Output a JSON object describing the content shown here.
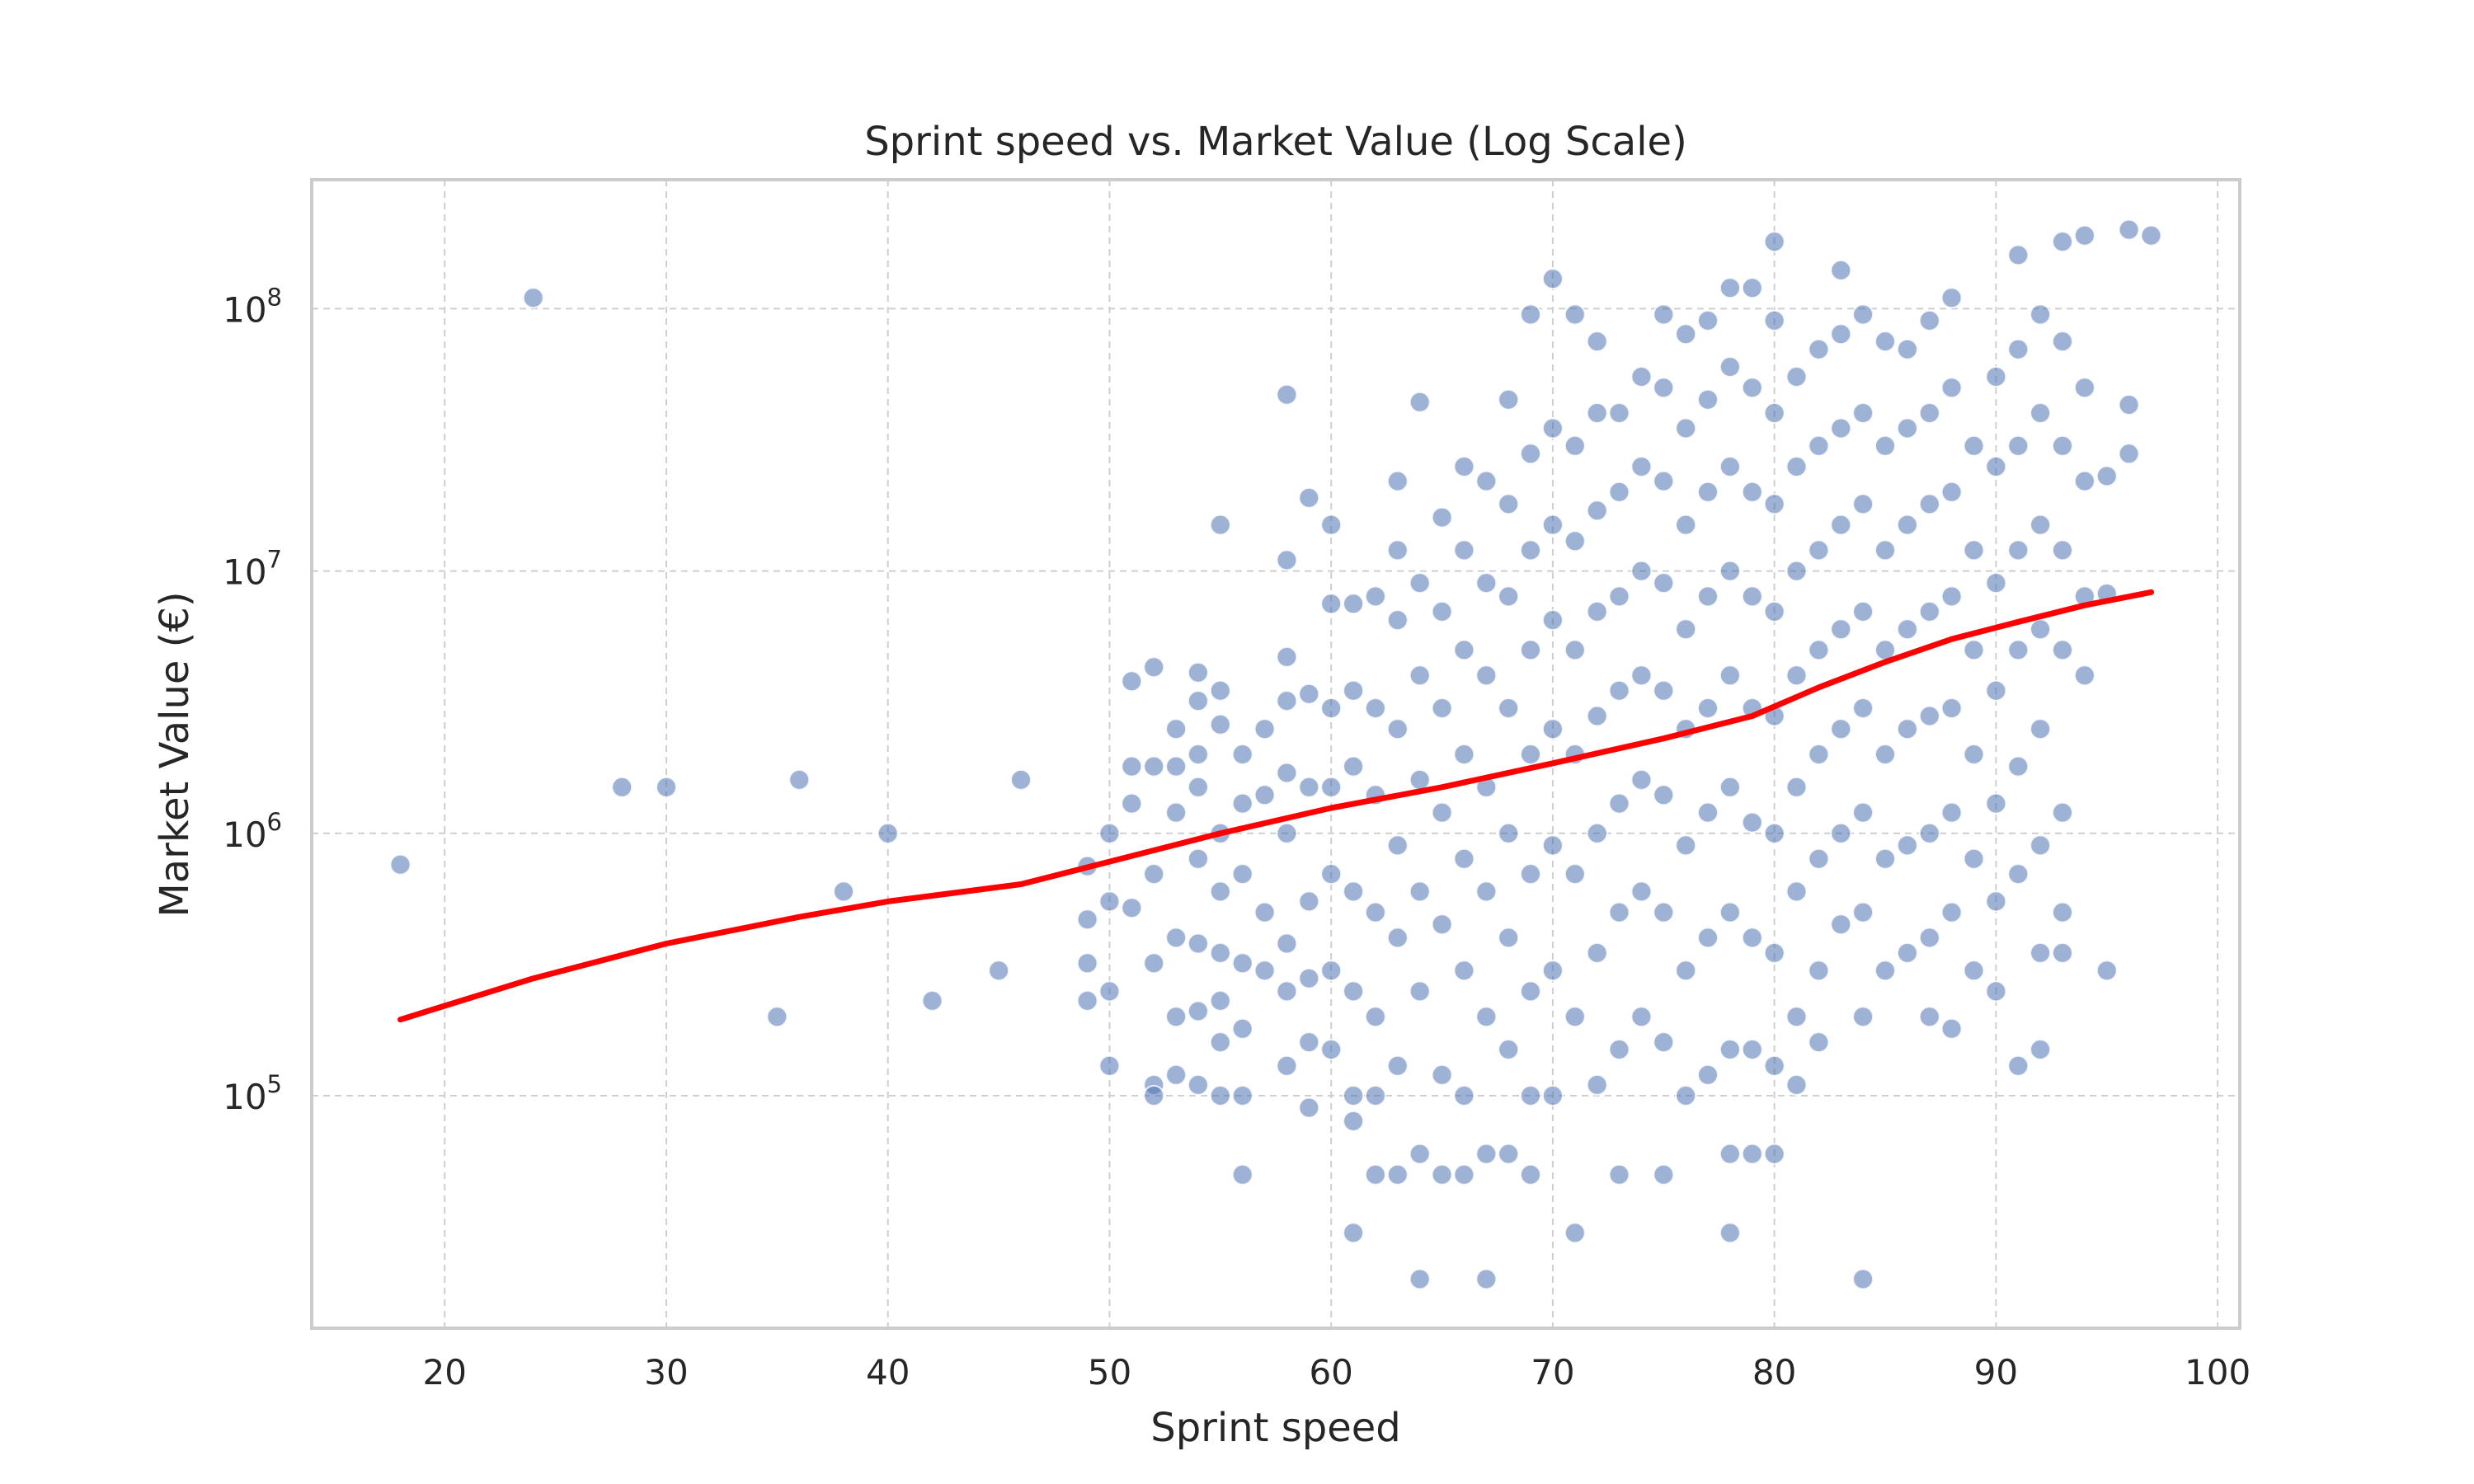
{
  "chart_data": {
    "type": "scatter",
    "title": "Sprint speed vs. Market Value (Log Scale)",
    "xlabel": "Sprint speed",
    "ylabel": "Market Value (€)",
    "xlim": [
      14,
      101
    ],
    "ylim": [
      13000,
      310000000
    ],
    "y_scale": "log",
    "grid": true,
    "x_ticks": [
      "20",
      "30",
      "40",
      "50",
      "60",
      "70",
      "80",
      "90",
      "100"
    ],
    "y_ticks": [
      {
        "base": "10",
        "exp": "5"
      },
      {
        "base": "10",
        "exp": "6"
      },
      {
        "base": "10",
        "exp": "7"
      },
      {
        "base": "10",
        "exp": "8"
      }
    ],
    "point_color": "#4c72b0",
    "trend_color": "#ff0000",
    "points": [
      [
        18,
        760000
      ],
      [
        24,
        110000000
      ],
      [
        28,
        1500000
      ],
      [
        30,
        1500000
      ],
      [
        35,
        200000
      ],
      [
        36,
        1600000
      ],
      [
        38,
        600000
      ],
      [
        40,
        1000000
      ],
      [
        42,
        230000
      ],
      [
        45,
        300000
      ],
      [
        46,
        1600000
      ],
      [
        49,
        750000
      ],
      [
        49,
        470000
      ],
      [
        49,
        320000
      ],
      [
        49,
        230000
      ],
      [
        50,
        1000000
      ],
      [
        50,
        550000
      ],
      [
        50,
        250000
      ],
      [
        50,
        130000
      ],
      [
        51,
        3800000
      ],
      [
        51,
        1800000
      ],
      [
        51,
        1300000
      ],
      [
        51,
        520000
      ],
      [
        52,
        4300000
      ],
      [
        52,
        1800000
      ],
      [
        52,
        700000
      ],
      [
        52,
        320000
      ],
      [
        52,
        110000
      ],
      [
        52,
        100000
      ],
      [
        53,
        2500000
      ],
      [
        53,
        1800000
      ],
      [
        53,
        1200000
      ],
      [
        53,
        400000
      ],
      [
        53,
        200000
      ],
      [
        53,
        120000
      ],
      [
        54,
        4100000
      ],
      [
        54,
        3200000
      ],
      [
        54,
        2000000
      ],
      [
        54,
        1500000
      ],
      [
        54,
        800000
      ],
      [
        54,
        380000
      ],
      [
        54,
        210000
      ],
      [
        54,
        110000
      ],
      [
        55,
        15000000
      ],
      [
        55,
        3500000
      ],
      [
        55,
        2600000
      ],
      [
        55,
        1000000
      ],
      [
        55,
        600000
      ],
      [
        55,
        350000
      ],
      [
        55,
        230000
      ],
      [
        55,
        160000
      ],
      [
        55,
        100000
      ],
      [
        56,
        2000000
      ],
      [
        56,
        1300000
      ],
      [
        56,
        700000
      ],
      [
        56,
        320000
      ],
      [
        56,
        180000
      ],
      [
        56,
        100000
      ],
      [
        56,
        50000
      ],
      [
        57,
        2500000
      ],
      [
        57,
        1400000
      ],
      [
        57,
        500000
      ],
      [
        57,
        300000
      ],
      [
        58,
        47000000
      ],
      [
        58,
        11000000
      ],
      [
        58,
        4700000
      ],
      [
        58,
        3200000
      ],
      [
        58,
        1700000
      ],
      [
        58,
        1000000
      ],
      [
        58,
        380000
      ],
      [
        58,
        250000
      ],
      [
        58,
        130000
      ],
      [
        59,
        19000000
      ],
      [
        59,
        3400000
      ],
      [
        59,
        1500000
      ],
      [
        59,
        550000
      ],
      [
        59,
        280000
      ],
      [
        59,
        160000
      ],
      [
        59,
        90000
      ],
      [
        60,
        15000000
      ],
      [
        60,
        7500000
      ],
      [
        60,
        3000000
      ],
      [
        60,
        1500000
      ],
      [
        60,
        700000
      ],
      [
        60,
        300000
      ],
      [
        60,
        150000
      ],
      [
        61,
        7500000
      ],
      [
        61,
        3500000
      ],
      [
        61,
        1800000
      ],
      [
        61,
        600000
      ],
      [
        61,
        250000
      ],
      [
        61,
        100000
      ],
      [
        61,
        80000
      ],
      [
        61,
        30000
      ],
      [
        62,
        8000000
      ],
      [
        62,
        3000000
      ],
      [
        62,
        1400000
      ],
      [
        62,
        500000
      ],
      [
        62,
        200000
      ],
      [
        62,
        100000
      ],
      [
        62,
        50000
      ],
      [
        63,
        22000000
      ],
      [
        63,
        12000000
      ],
      [
        63,
        6500000
      ],
      [
        63,
        2500000
      ],
      [
        63,
        900000
      ],
      [
        63,
        400000
      ],
      [
        63,
        130000
      ],
      [
        63,
        50000
      ],
      [
        64,
        44000000
      ],
      [
        64,
        9000000
      ],
      [
        64,
        4000000
      ],
      [
        64,
        1600000
      ],
      [
        64,
        600000
      ],
      [
        64,
        250000
      ],
      [
        64,
        60000
      ],
      [
        64,
        20000
      ],
      [
        65,
        16000000
      ],
      [
        65,
        7000000
      ],
      [
        65,
        3000000
      ],
      [
        65,
        1200000
      ],
      [
        65,
        450000
      ],
      [
        65,
        120000
      ],
      [
        65,
        50000
      ],
      [
        66,
        25000000
      ],
      [
        66,
        12000000
      ],
      [
        66,
        5000000
      ],
      [
        66,
        2000000
      ],
      [
        66,
        800000
      ],
      [
        66,
        300000
      ],
      [
        66,
        100000
      ],
      [
        66,
        50000
      ],
      [
        67,
        22000000
      ],
      [
        67,
        9000000
      ],
      [
        67,
        4000000
      ],
      [
        67,
        1500000
      ],
      [
        67,
        600000
      ],
      [
        67,
        200000
      ],
      [
        67,
        60000
      ],
      [
        67,
        20000
      ],
      [
        68,
        45000000
      ],
      [
        68,
        18000000
      ],
      [
        68,
        8000000
      ],
      [
        68,
        3000000
      ],
      [
        68,
        1000000
      ],
      [
        68,
        400000
      ],
      [
        68,
        150000
      ],
      [
        68,
        60000
      ],
      [
        69,
        95000000
      ],
      [
        69,
        28000000
      ],
      [
        69,
        12000000
      ],
      [
        69,
        5000000
      ],
      [
        69,
        2000000
      ],
      [
        69,
        700000
      ],
      [
        69,
        250000
      ],
      [
        69,
        100000
      ],
      [
        69,
        50000
      ],
      [
        70,
        130000000
      ],
      [
        70,
        35000000
      ],
      [
        70,
        15000000
      ],
      [
        70,
        6500000
      ],
      [
        70,
        2500000
      ],
      [
        70,
        900000
      ],
      [
        70,
        300000
      ],
      [
        70,
        100000
      ],
      [
        71,
        95000000
      ],
      [
        71,
        30000000
      ],
      [
        71,
        13000000
      ],
      [
        71,
        5000000
      ],
      [
        71,
        2000000
      ],
      [
        71,
        700000
      ],
      [
        71,
        200000
      ],
      [
        71,
        30000
      ],
      [
        72,
        75000000
      ],
      [
        72,
        40000000
      ],
      [
        72,
        17000000
      ],
      [
        72,
        7000000
      ],
      [
        72,
        2800000
      ],
      [
        72,
        1000000
      ],
      [
        72,
        350000
      ],
      [
        72,
        110000
      ],
      [
        73,
        40000000
      ],
      [
        73,
        20000000
      ],
      [
        73,
        8000000
      ],
      [
        73,
        3500000
      ],
      [
        73,
        1300000
      ],
      [
        73,
        500000
      ],
      [
        73,
        150000
      ],
      [
        73,
        50000
      ],
      [
        74,
        55000000
      ],
      [
        74,
        25000000
      ],
      [
        74,
        10000000
      ],
      [
        74,
        4000000
      ],
      [
        74,
        1600000
      ],
      [
        74,
        600000
      ],
      [
        74,
        200000
      ],
      [
        75,
        95000000
      ],
      [
        75,
        50000000
      ],
      [
        75,
        22000000
      ],
      [
        75,
        9000000
      ],
      [
        75,
        3500000
      ],
      [
        75,
        1400000
      ],
      [
        75,
        500000
      ],
      [
        75,
        160000
      ],
      [
        75,
        50000
      ],
      [
        76,
        80000000
      ],
      [
        76,
        35000000
      ],
      [
        76,
        15000000
      ],
      [
        76,
        6000000
      ],
      [
        76,
        2500000
      ],
      [
        76,
        900000
      ],
      [
        76,
        300000
      ],
      [
        76,
        100000
      ],
      [
        77,
        90000000
      ],
      [
        77,
        45000000
      ],
      [
        77,
        20000000
      ],
      [
        77,
        8000000
      ],
      [
        77,
        3000000
      ],
      [
        77,
        1200000
      ],
      [
        77,
        400000
      ],
      [
        77,
        120000
      ],
      [
        78,
        120000000
      ],
      [
        78,
        60000000
      ],
      [
        78,
        25000000
      ],
      [
        78,
        10000000
      ],
      [
        78,
        4000000
      ],
      [
        78,
        1500000
      ],
      [
        78,
        500000
      ],
      [
        78,
        150000
      ],
      [
        78,
        60000
      ],
      [
        78,
        30000
      ],
      [
        79,
        120000000
      ],
      [
        79,
        50000000
      ],
      [
        79,
        20000000
      ],
      [
        79,
        8000000
      ],
      [
        79,
        3000000
      ],
      [
        79,
        1100000
      ],
      [
        79,
        400000
      ],
      [
        79,
        150000
      ],
      [
        79,
        60000
      ],
      [
        80,
        180000000
      ],
      [
        80,
        90000000
      ],
      [
        80,
        40000000
      ],
      [
        80,
        18000000
      ],
      [
        80,
        7000000
      ],
      [
        80,
        2800000
      ],
      [
        80,
        1000000
      ],
      [
        80,
        350000
      ],
      [
        80,
        130000
      ],
      [
        80,
        60000
      ],
      [
        81,
        55000000
      ],
      [
        81,
        25000000
      ],
      [
        81,
        10000000
      ],
      [
        81,
        4000000
      ],
      [
        81,
        1500000
      ],
      [
        81,
        600000
      ],
      [
        81,
        200000
      ],
      [
        81,
        110000
      ],
      [
        82,
        70000000
      ],
      [
        82,
        30000000
      ],
      [
        82,
        12000000
      ],
      [
        82,
        5000000
      ],
      [
        82,
        2000000
      ],
      [
        82,
        800000
      ],
      [
        82,
        300000
      ],
      [
        82,
        160000
      ],
      [
        83,
        140000000
      ],
      [
        83,
        80000000
      ],
      [
        83,
        35000000
      ],
      [
        83,
        15000000
      ],
      [
        83,
        6000000
      ],
      [
        83,
        2500000
      ],
      [
        83,
        1000000
      ],
      [
        83,
        450000
      ],
      [
        84,
        95000000
      ],
      [
        84,
        40000000
      ],
      [
        84,
        18000000
      ],
      [
        84,
        7000000
      ],
      [
        84,
        3000000
      ],
      [
        84,
        1200000
      ],
      [
        84,
        500000
      ],
      [
        84,
        200000
      ],
      [
        84,
        20000
      ],
      [
        85,
        75000000
      ],
      [
        85,
        30000000
      ],
      [
        85,
        12000000
      ],
      [
        85,
        5000000
      ],
      [
        85,
        2000000
      ],
      [
        85,
        800000
      ],
      [
        85,
        300000
      ],
      [
        86,
        70000000
      ],
      [
        86,
        35000000
      ],
      [
        86,
        15000000
      ],
      [
        86,
        6000000
      ],
      [
        86,
        2500000
      ],
      [
        86,
        900000
      ],
      [
        86,
        350000
      ],
      [
        87,
        90000000
      ],
      [
        87,
        40000000
      ],
      [
        87,
        18000000
      ],
      [
        87,
        7000000
      ],
      [
        87,
        2800000
      ],
      [
        87,
        1000000
      ],
      [
        87,
        400000
      ],
      [
        87,
        200000
      ],
      [
        88,
        110000000
      ],
      [
        88,
        50000000
      ],
      [
        88,
        20000000
      ],
      [
        88,
        8000000
      ],
      [
        88,
        3000000
      ],
      [
        88,
        1200000
      ],
      [
        88,
        500000
      ],
      [
        88,
        180000
      ],
      [
        89,
        30000000
      ],
      [
        89,
        12000000
      ],
      [
        89,
        5000000
      ],
      [
        89,
        2000000
      ],
      [
        89,
        800000
      ],
      [
        89,
        300000
      ],
      [
        90,
        55000000
      ],
      [
        90,
        25000000
      ],
      [
        90,
        9000000
      ],
      [
        90,
        3500000
      ],
      [
        90,
        1300000
      ],
      [
        90,
        550000
      ],
      [
        90,
        250000
      ],
      [
        91,
        160000000
      ],
      [
        91,
        70000000
      ],
      [
        91,
        30000000
      ],
      [
        91,
        12000000
      ],
      [
        91,
        5000000
      ],
      [
        91,
        1800000
      ],
      [
        91,
        700000
      ],
      [
        91,
        130000
      ],
      [
        92,
        95000000
      ],
      [
        92,
        40000000
      ],
      [
        92,
        15000000
      ],
      [
        92,
        6000000
      ],
      [
        92,
        2500000
      ],
      [
        92,
        900000
      ],
      [
        92,
        350000
      ],
      [
        92,
        150000
      ],
      [
        93,
        180000000
      ],
      [
        93,
        75000000
      ],
      [
        93,
        30000000
      ],
      [
        93,
        12000000
      ],
      [
        93,
        5000000
      ],
      [
        93,
        1200000
      ],
      [
        93,
        500000
      ],
      [
        93,
        350000
      ],
      [
        94,
        190000000
      ],
      [
        94,
        50000000
      ],
      [
        94,
        22000000
      ],
      [
        94,
        8000000
      ],
      [
        94,
        4000000
      ],
      [
        95,
        23000000
      ],
      [
        95,
        8200000
      ],
      [
        95,
        300000
      ],
      [
        96,
        200000000
      ],
      [
        96,
        43000000
      ],
      [
        96,
        28000000
      ],
      [
        97,
        190000000
      ]
    ],
    "trend": [
      [
        18,
        195000
      ],
      [
        24,
        280000
      ],
      [
        30,
        380000
      ],
      [
        36,
        480000
      ],
      [
        40,
        550000
      ],
      [
        46,
        640000
      ],
      [
        50,
        780000
      ],
      [
        55,
        1000000
      ],
      [
        60,
        1250000
      ],
      [
        65,
        1500000
      ],
      [
        70,
        1850000
      ],
      [
        75,
        2300000
      ],
      [
        79,
        2800000
      ],
      [
        82,
        3600000
      ],
      [
        85,
        4500000
      ],
      [
        88,
        5500000
      ],
      [
        91,
        6400000
      ],
      [
        94,
        7400000
      ],
      [
        97,
        8300000
      ]
    ]
  }
}
